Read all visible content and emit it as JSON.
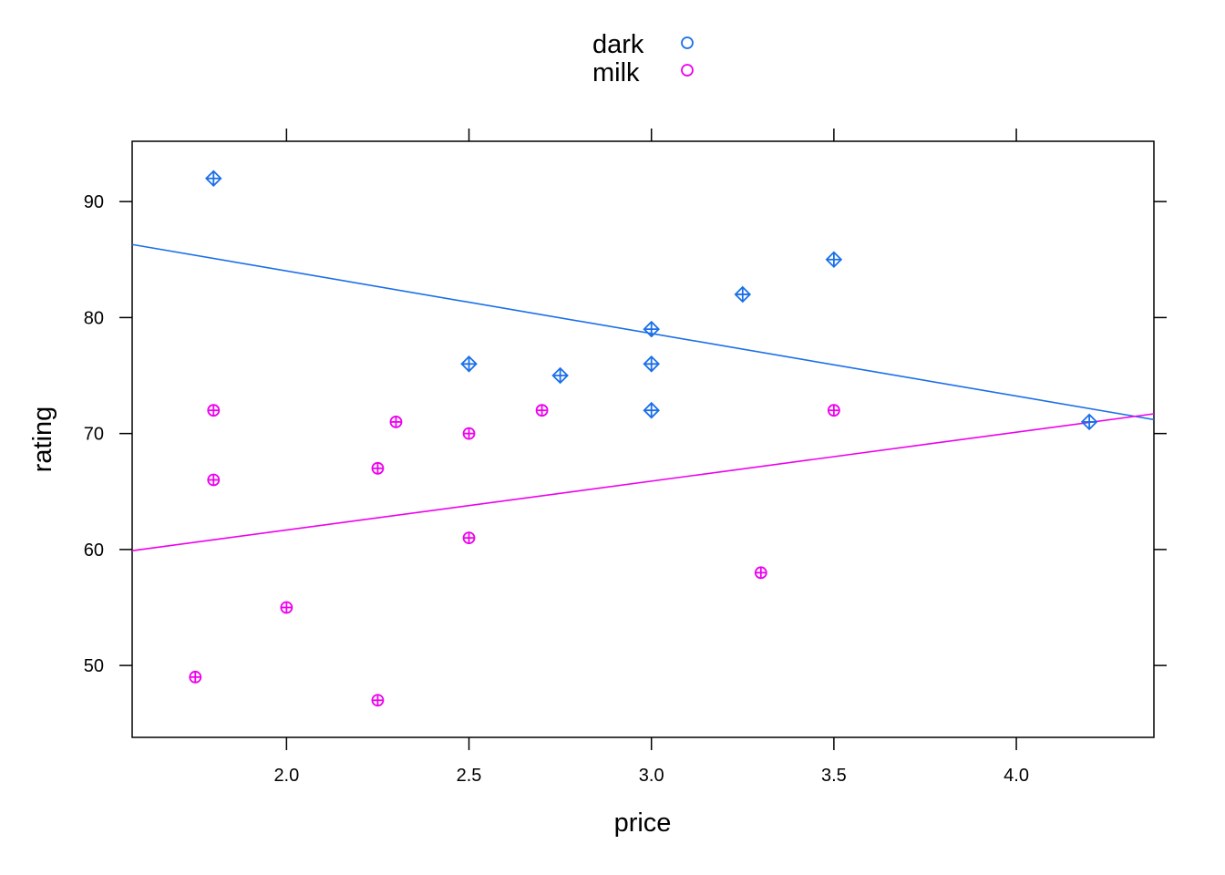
{
  "chart_data": {
    "type": "scatter",
    "title": "",
    "xlabel": "price",
    "ylabel": "rating",
    "xlim": [
      1.577,
      4.377
    ],
    "ylim": [
      43.8,
      95.2
    ],
    "x_ticks": [
      2.0,
      2.5,
      3.0,
      3.5,
      4.0
    ],
    "x_tick_labels": [
      "2.0",
      "2.5",
      "3.0",
      "3.5",
      "4.0"
    ],
    "y_ticks": [
      50,
      60,
      70,
      80,
      90
    ],
    "y_tick_labels": [
      "50",
      "60",
      "70",
      "80",
      "90"
    ],
    "grid": false,
    "legend_position": "top-center",
    "series": [
      {
        "name": "dark",
        "color": "#1a6fe8",
        "marker": "diamond-plus",
        "legend_marker": "circle",
        "points": [
          [
            1.8,
            92
          ],
          [
            2.5,
            76
          ],
          [
            2.75,
            75
          ],
          [
            3.0,
            79
          ],
          [
            3.0,
            76
          ],
          [
            3.0,
            72
          ],
          [
            3.25,
            82
          ],
          [
            3.5,
            85
          ],
          [
            4.2,
            71
          ]
        ],
        "fit_line": [
          [
            1.577,
            86.3
          ],
          [
            4.377,
            71.2
          ]
        ]
      },
      {
        "name": "milk",
        "color": "#ee00ee",
        "marker": "circle-plus",
        "legend_marker": "circle",
        "points": [
          [
            1.75,
            49
          ],
          [
            1.8,
            72
          ],
          [
            1.8,
            66
          ],
          [
            2.0,
            55
          ],
          [
            2.25,
            67
          ],
          [
            2.25,
            47
          ],
          [
            2.3,
            71
          ],
          [
            2.5,
            70
          ],
          [
            2.5,
            61
          ],
          [
            2.7,
            72
          ],
          [
            3.3,
            58
          ],
          [
            3.5,
            72
          ]
        ],
        "fit_line": [
          [
            1.577,
            59.9
          ],
          [
            4.377,
            71.7
          ]
        ]
      }
    ]
  }
}
